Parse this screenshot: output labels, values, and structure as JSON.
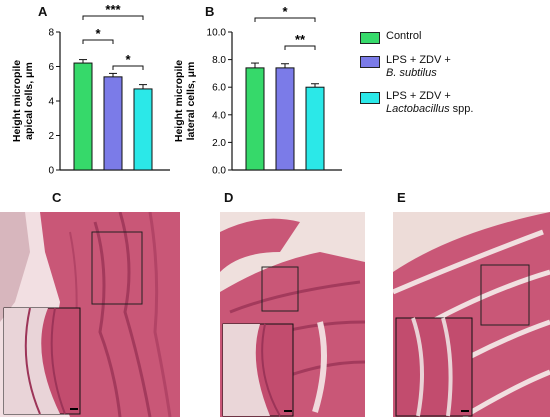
{
  "panels": {
    "A": "A",
    "B": "B",
    "C": "C",
    "D": "D",
    "E": "E"
  },
  "colors": {
    "control": "#36d96a",
    "bsub": "#7b7be8",
    "lacto": "#2be8e8"
  },
  "legend": {
    "control": "Control",
    "bsub_line1": "LPS + ZDV +",
    "bsub_line2": "B. subtilus",
    "lacto_line1": "LPS + ZDV +",
    "lacto_line2": "Lactobacillus",
    "lacto_line2_suffix": " spp."
  },
  "chart_data": [
    {
      "type": "bar",
      "ylabel_line1": "Height micropile",
      "ylabel_line2": "apical cells, μm",
      "ylim": [
        0,
        8
      ],
      "yticks": [
        "0",
        "2",
        "4",
        "6",
        "8"
      ],
      "series": [
        {
          "name": "Control",
          "value": 6.2,
          "error": 0.2
        },
        {
          "name": "LPS + ZDV + B. subtilus",
          "value": 5.4,
          "error": 0.2
        },
        {
          "name": "LPS + ZDV + Lactobacillus spp.",
          "value": 4.7,
          "error": 0.25
        }
      ],
      "significance": [
        {
          "label": "***",
          "from": 0,
          "to": 2
        },
        {
          "label": "*",
          "from": 0,
          "to": 1
        },
        {
          "label": "*",
          "from": 1,
          "to": 2
        }
      ]
    },
    {
      "type": "bar",
      "ylabel_line1": "Height micropile",
      "ylabel_line2": "lateral cells, μm",
      "ylim": [
        0,
        10
      ],
      "yticks": [
        "0.0",
        "2.0",
        "4.0",
        "6.0",
        "8.0",
        "10.0"
      ],
      "series": [
        {
          "name": "Control",
          "value": 7.4,
          "error": 0.35
        },
        {
          "name": "LPS + ZDV + B. subtilus",
          "value": 7.4,
          "error": 0.3
        },
        {
          "name": "LPS + ZDV + Lactobacillus spp.",
          "value": 6.0,
          "error": 0.25
        }
      ],
      "significance": [
        {
          "label": "*",
          "from": 0,
          "to": 2
        },
        {
          "label": "**",
          "from": 1,
          "to": 2
        }
      ]
    }
  ]
}
